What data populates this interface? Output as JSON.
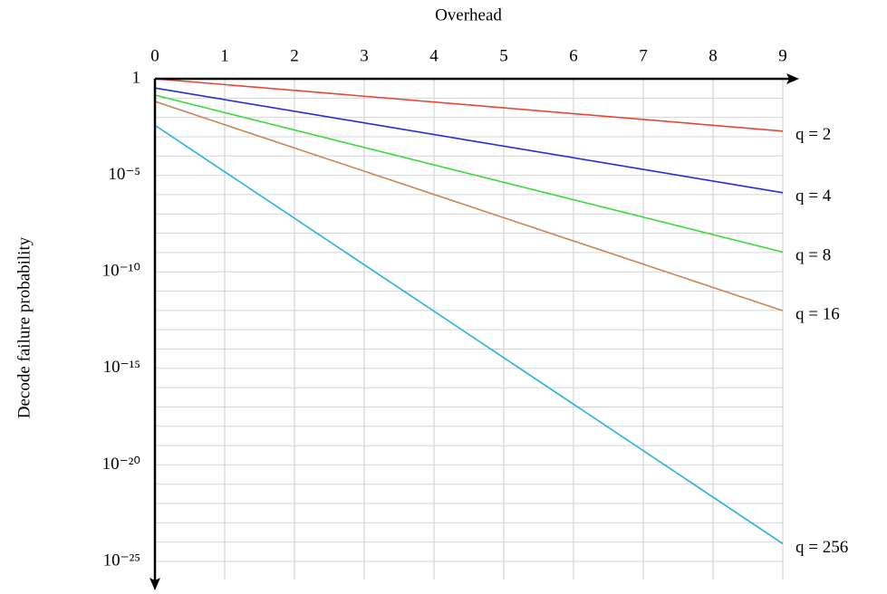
{
  "chart_data": {
    "type": "line",
    "title": "Overhead",
    "y_label": "Decode failure probability",
    "x": [
      0,
      9
    ],
    "series": [
      {
        "name": "q = 2",
        "color": "#e8472f",
        "values": [
          1,
          0.00195
        ]
      },
      {
        "name": "q = 4",
        "color": "#2b2bd9",
        "values": [
          0.333,
          1.26e-06
        ]
      },
      {
        "name": "q = 8",
        "color": "#33dd33",
        "values": [
          0.143,
          1.06e-09
        ]
      },
      {
        "name": "q = 16",
        "color": "#c8875a",
        "values": [
          0.0667,
          9.7e-13
        ]
      },
      {
        "name": "q = 256",
        "color": "#22b5d8",
        "values": [
          0.0039,
          8.3e-25
        ]
      }
    ],
    "xlim": [
      0,
      9
    ],
    "xticks": [
      0,
      1,
      2,
      3,
      4,
      5,
      6,
      7,
      8,
      9
    ],
    "ylim": [
      1e-25,
      1
    ],
    "log_y": true,
    "yticks": [
      1,
      {
        "value": 1e-05,
        "label": "10⁻⁵"
      },
      {
        "value": 1e-10,
        "label": "10⁻¹⁰"
      },
      {
        "value": 1e-15,
        "label": "10⁻¹⁵"
      },
      {
        "value": 1e-20,
        "label": "10⁻²⁰"
      },
      {
        "value": 1e-25,
        "label": "10⁻²⁵"
      }
    ],
    "grid": true,
    "minor_grid": "decade"
  }
}
